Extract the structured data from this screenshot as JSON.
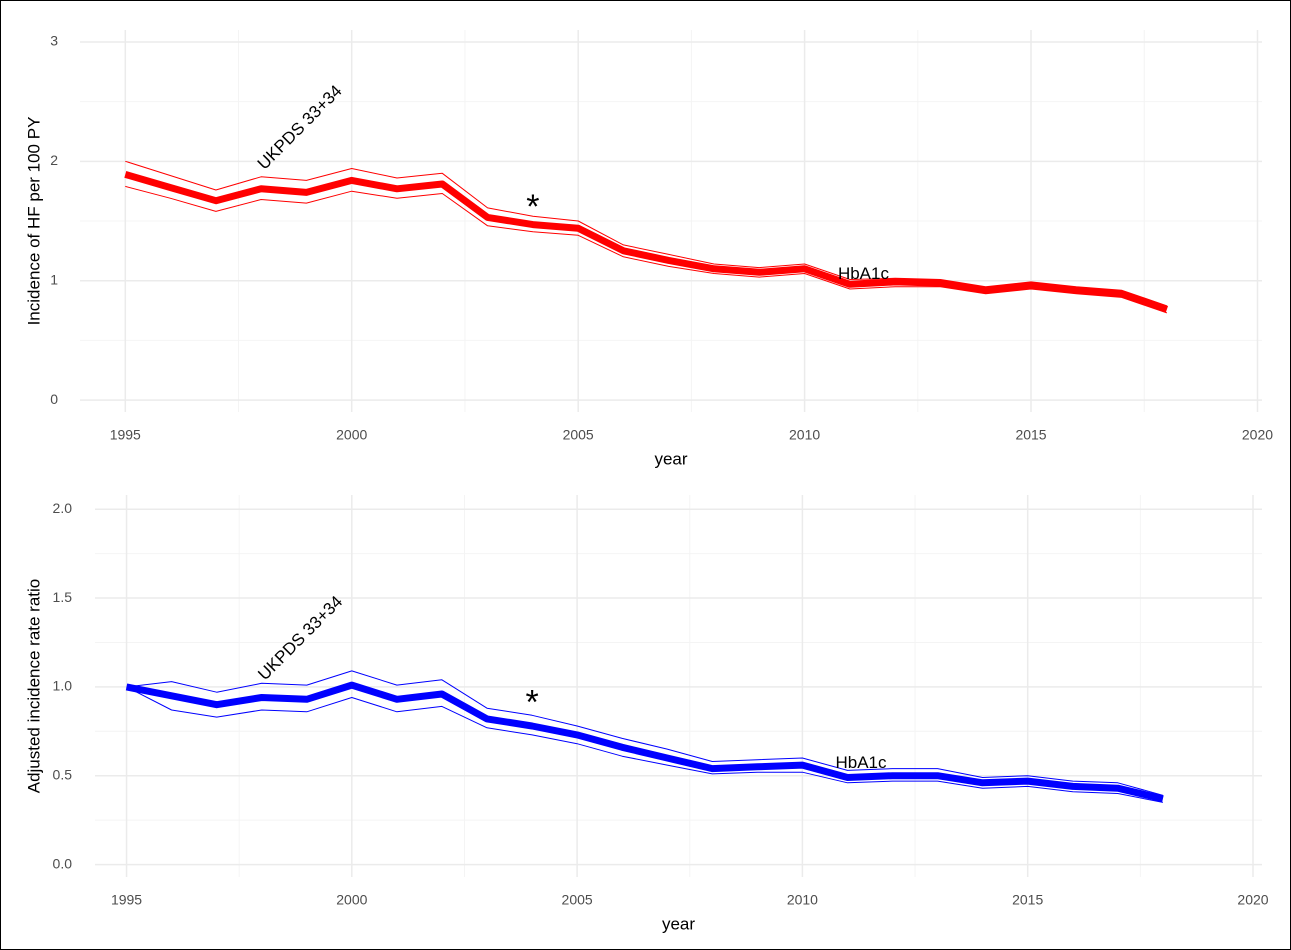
{
  "chart_data": [
    {
      "type": "line",
      "xlabel": "year",
      "ylabel": "Incidence of HF per 100 PY",
      "x": [
        1995,
        1996,
        1997,
        1998,
        1999,
        2000,
        2001,
        2002,
        2003,
        2004,
        2005,
        2006,
        2007,
        2008,
        2009,
        2010,
        2011,
        2012,
        2013,
        2014,
        2015,
        2016,
        2017,
        2018
      ],
      "values": [
        1.89,
        1.78,
        1.67,
        1.77,
        1.74,
        1.84,
        1.77,
        1.81,
        1.53,
        1.47,
        1.44,
        1.25,
        1.17,
        1.1,
        1.07,
        1.1,
        0.97,
        0.99,
        0.98,
        0.92,
        0.96,
        0.92,
        0.89,
        0.76
      ],
      "upper": [
        2.0,
        1.88,
        1.76,
        1.87,
        1.84,
        1.94,
        1.86,
        1.9,
        1.61,
        1.54,
        1.5,
        1.3,
        1.22,
        1.14,
        1.11,
        1.14,
        1.01,
        1.02,
        1.01,
        0.95,
        0.99,
        0.95,
        0.92,
        0.79
      ],
      "lower": [
        1.79,
        1.69,
        1.58,
        1.68,
        1.65,
        1.75,
        1.69,
        1.73,
        1.46,
        1.41,
        1.38,
        1.2,
        1.12,
        1.06,
        1.03,
        1.06,
        0.93,
        0.95,
        0.95,
        0.89,
        0.93,
        0.89,
        0.86,
        0.73
      ],
      "color": "#ff0000",
      "xlim": [
        1994,
        2020.1
      ],
      "xticks": [
        1995,
        2000,
        2005,
        2010,
        2015,
        2020
      ],
      "ylim": [
        -0.1,
        3.1
      ],
      "yticks": [
        0,
        1,
        2,
        3
      ],
      "grid": true,
      "annotations": [
        {
          "text": "UKPDS 33+34",
          "x": 1998,
          "y": 1.95,
          "angle": -45
        },
        {
          "text": "*",
          "x": 2004,
          "y": 1.6,
          "angle": 0
        },
        {
          "text": "HbA1c",
          "x": 2011.3,
          "y": 1.05,
          "angle": 0
        }
      ]
    },
    {
      "type": "line",
      "xlabel": "year",
      "ylabel": "Adjusted incidence rate ratio",
      "x": [
        1995,
        1996,
        1997,
        1998,
        1999,
        2000,
        2001,
        2002,
        2003,
        2004,
        2005,
        2006,
        2007,
        2008,
        2009,
        2010,
        2011,
        2012,
        2013,
        2014,
        2015,
        2016,
        2017,
        2018
      ],
      "values": [
        1.0,
        0.95,
        0.9,
        0.94,
        0.93,
        1.01,
        0.93,
        0.96,
        0.82,
        0.78,
        0.73,
        0.66,
        0.6,
        0.54,
        0.55,
        0.56,
        0.49,
        0.5,
        0.5,
        0.46,
        0.47,
        0.44,
        0.43,
        0.37
      ],
      "upper": [
        1.0,
        1.03,
        0.97,
        1.02,
        1.01,
        1.09,
        1.01,
        1.04,
        0.88,
        0.84,
        0.78,
        0.71,
        0.65,
        0.58,
        0.59,
        0.6,
        0.53,
        0.54,
        0.54,
        0.49,
        0.5,
        0.47,
        0.46,
        0.39
      ],
      "lower": [
        1.0,
        0.87,
        0.83,
        0.87,
        0.86,
        0.94,
        0.86,
        0.89,
        0.77,
        0.73,
        0.68,
        0.61,
        0.56,
        0.51,
        0.52,
        0.52,
        0.46,
        0.47,
        0.47,
        0.43,
        0.44,
        0.41,
        0.4,
        0.35
      ],
      "color": "#0000ff",
      "xlim": [
        1994.3,
        2020.2
      ],
      "xticks": [
        1995,
        2000,
        2005,
        2010,
        2015,
        2020
      ],
      "ylim": [
        -0.07,
        2.08
      ],
      "yticks": [
        {
          "value": 0,
          "label": "0.0"
        },
        0.5,
        {
          "value": 1,
          "label": "1.0"
        },
        1.5,
        {
          "value": 2,
          "label": "2.0"
        }
      ],
      "grid": true,
      "annotations": [
        {
          "text": "UKPDS 33+34",
          "x": 1998,
          "y": 1.05,
          "angle": -45
        },
        {
          "text": "*",
          "x": 2004,
          "y": 0.9,
          "angle": 0
        },
        {
          "text": "HbA1c",
          "x": 2011.3,
          "y": 0.57,
          "angle": 0
        }
      ]
    }
  ]
}
